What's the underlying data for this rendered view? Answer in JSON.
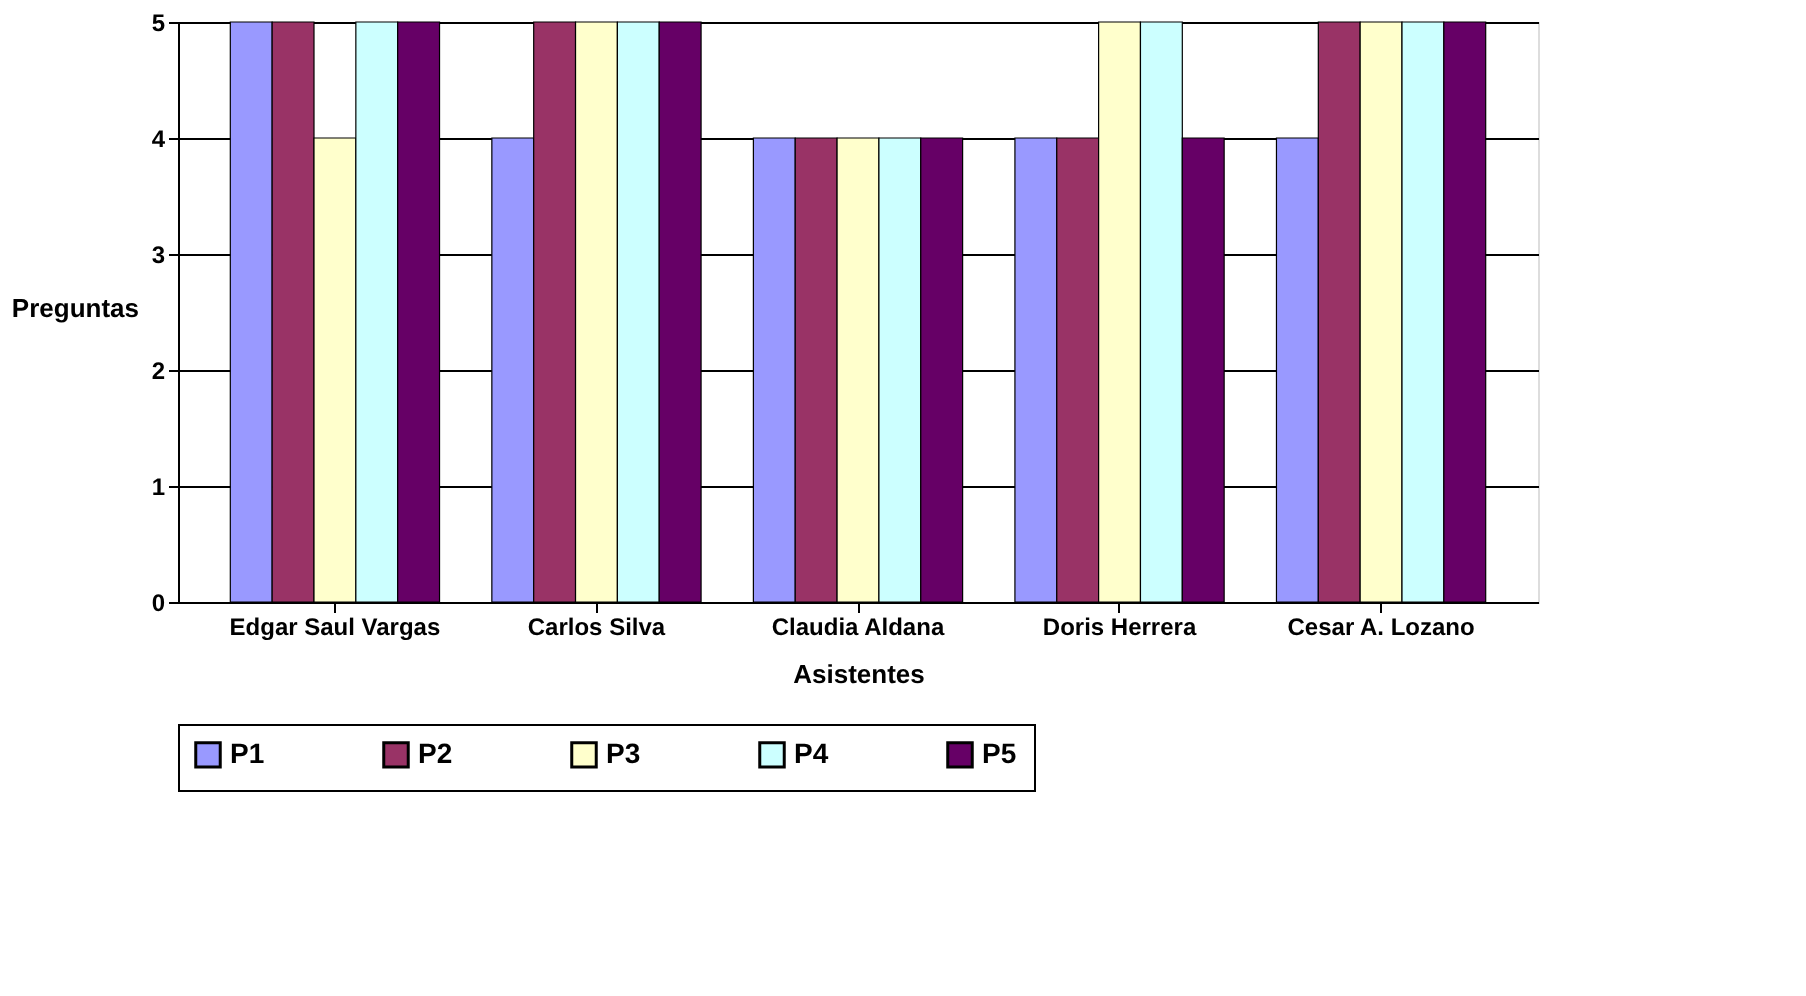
{
  "chart_data": {
    "type": "bar",
    "xlabel": "Asistentes",
    "ylabel": "Preguntas",
    "categories": [
      "Edgar Saul Vargas",
      "Carlos Silva",
      "Claudia Aldana",
      "Doris Herrera",
      "Cesar A. Lozano"
    ],
    "series": [
      {
        "name": "P1",
        "color": "#9999ff",
        "values": [
          5,
          4,
          4,
          4,
          4
        ]
      },
      {
        "name": "P2",
        "color": "#993366",
        "values": [
          5,
          5,
          4,
          4,
          5
        ]
      },
      {
        "name": "P3",
        "color": "#ffffcc",
        "values": [
          4,
          5,
          4,
          5,
          5
        ]
      },
      {
        "name": "P4",
        "color": "#ccffff",
        "values": [
          5,
          5,
          4,
          5,
          5
        ]
      },
      {
        "name": "P5",
        "color": "#660066",
        "values": [
          5,
          5,
          4,
          4,
          5
        ]
      }
    ],
    "ylim": [
      0,
      5
    ],
    "yticks": [
      0,
      1,
      2,
      3,
      4,
      5
    ],
    "grid": "y",
    "legend": "bottom"
  }
}
